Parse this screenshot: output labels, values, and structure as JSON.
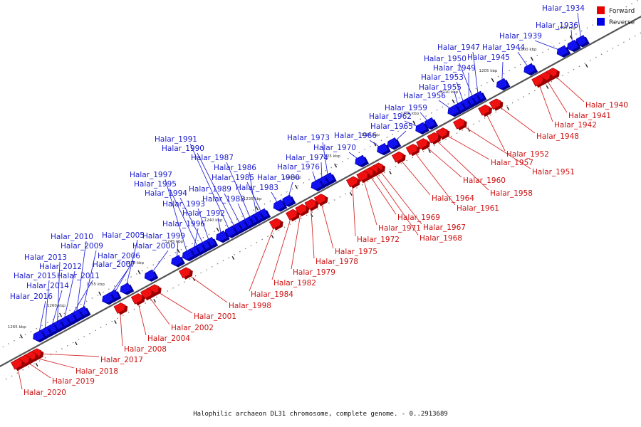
{
  "legend": {
    "forward": {
      "label": "Forward",
      "color": "#e80000"
    },
    "reverse": {
      "label": "Reverse",
      "color": "#0000e8"
    }
  },
  "caption": "Halophilic archaeon DL31 chromosome, complete genome. - 0..2913689",
  "axis": {
    "start_kbp": 1195,
    "end_kbp": 1265,
    "unit": "kbp"
  },
  "ticks": [
    1195,
    1200,
    1205,
    1210,
    1215,
    1220,
    1225,
    1230,
    1235,
    1240,
    1245,
    1250,
    1255,
    1260,
    1265
  ],
  "tick_labels": [
    "1195 kbp",
    "1200 kbp",
    "1205 kbp",
    "1210 kbp",
    "1215 kbp",
    "1220 kbp",
    "1225 kbp",
    "1230 kbp",
    "1235 kbp",
    "1240 kbp",
    "1245 kbp",
    "1250 kbp",
    "1255 kbp",
    "1260 kbp",
    "1265 kbp"
  ],
  "reverse_genes": [
    {
      "name": "Halar_1934",
      "kbp": 1194.2
    },
    {
      "name": "Halar_1936",
      "kbp": 1195.3
    },
    {
      "name": "Halar_1939",
      "kbp": 1196.6
    },
    {
      "name": "Halar_1944",
      "kbp": 1200.8
    },
    {
      "name": "Halar_1945",
      "kbp": 1204.3
    },
    {
      "name": "Halar_1947",
      "kbp": 1207.3
    },
    {
      "name": "Halar_1950",
      "kbp": 1207.9
    },
    {
      "name": "Halar_1949",
      "kbp": 1208.5
    },
    {
      "name": "Halar_1953",
      "kbp": 1209.1
    },
    {
      "name": "Halar_1955",
      "kbp": 1209.8
    },
    {
      "name": "Halar_1956",
      "kbp": 1210.5
    },
    {
      "name": "Halar_1959",
      "kbp": 1213.5
    },
    {
      "name": "Halar_1962",
      "kbp": 1214.6
    },
    {
      "name": "Halar_1965",
      "kbp": 1218.2
    },
    {
      "name": "Halar_1966",
      "kbp": 1219.5
    },
    {
      "name": "Halar_1970",
      "kbp": 1222.3
    },
    {
      "name": "Halar_1973",
      "kbp": 1226.4
    },
    {
      "name": "Halar_1974",
      "kbp": 1227.2
    },
    {
      "name": "Halar_1976",
      "kbp": 1227.9
    },
    {
      "name": "Halar_1980",
      "kbp": 1231.6
    },
    {
      "name": "Halar_1983",
      "kbp": 1232.7
    },
    {
      "name": "Halar_1985",
      "kbp": 1234.8
    },
    {
      "name": "Halar_1986",
      "kbp": 1235.5
    },
    {
      "name": "Halar_1987",
      "kbp": 1236.2
    },
    {
      "name": "Halar_1988",
      "kbp": 1236.8
    },
    {
      "name": "Halar_1989",
      "kbp": 1237.5
    },
    {
      "name": "Halar_1990",
      "kbp": 1238.2
    },
    {
      "name": "Halar_1991",
      "kbp": 1238.9
    },
    {
      "name": "Halar_1992",
      "kbp": 1240.0
    },
    {
      "name": "Halar_1993",
      "kbp": 1241.5
    },
    {
      "name": "Halar_1994",
      "kbp": 1242.2
    },
    {
      "name": "Halar_1995",
      "kbp": 1242.9
    },
    {
      "name": "Halar_1996",
      "kbp": 1243.6
    },
    {
      "name": "Halar_1997",
      "kbp": 1244.3
    },
    {
      "name": "Halar_1999",
      "kbp": 1245.7
    },
    {
      "name": "Halar_2000",
      "kbp": 1249.1
    },
    {
      "name": "Halar_2005",
      "kbp": 1252.2
    },
    {
      "name": "Halar_2006",
      "kbp": 1253.8
    },
    {
      "name": "Halar_2007",
      "kbp": 1254.5
    },
    {
      "name": "Halar_2009",
      "kbp": 1257.7
    },
    {
      "name": "Halar_2010",
      "kbp": 1258.5
    },
    {
      "name": "Halar_2011",
      "kbp": 1259.3
    },
    {
      "name": "Halar_2012",
      "kbp": 1260.1
    },
    {
      "name": "Halar_2013",
      "kbp": 1260.9
    },
    {
      "name": "Halar_2014",
      "kbp": 1261.7
    },
    {
      "name": "Halar_2015",
      "kbp": 1262.5
    },
    {
      "name": "Halar_2016",
      "kbp": 1263.3
    }
  ],
  "forward_genes": [
    {
      "name": "Halar_1940",
      "kbp": 1198.8
    },
    {
      "name": "Halar_1941",
      "kbp": 1199.7
    },
    {
      "name": "Halar_1942",
      "kbp": 1200.6
    },
    {
      "name": "Halar_1948",
      "kbp": 1206.0
    },
    {
      "name": "Halar_1951",
      "kbp": 1210.6
    },
    {
      "name": "Halar_1952",
      "kbp": 1207.4
    },
    {
      "name": "Halar_1957",
      "kbp": 1212.8
    },
    {
      "name": "Halar_1958",
      "kbp": 1213.9
    },
    {
      "name": "Halar_1960",
      "kbp": 1215.3
    },
    {
      "name": "Halar_1961",
      "kbp": 1216.6
    },
    {
      "name": "Halar_1964",
      "kbp": 1218.4
    },
    {
      "name": "Halar_1967",
      "kbp": 1221.0
    },
    {
      "name": "Halar_1968",
      "kbp": 1221.6
    },
    {
      "name": "Halar_1969",
      "kbp": 1222.2
    },
    {
      "name": "Halar_1971",
      "kbp": 1222.9
    },
    {
      "name": "Halar_1972",
      "kbp": 1224.2
    },
    {
      "name": "Halar_1975",
      "kbp": 1228.3
    },
    {
      "name": "Halar_1978",
      "kbp": 1229.5
    },
    {
      "name": "Halar_1979",
      "kbp": 1230.7
    },
    {
      "name": "Halar_1982",
      "kbp": 1231.9
    },
    {
      "name": "Halar_1984",
      "kbp": 1234.0
    },
    {
      "name": "Halar_1998",
      "kbp": 1245.5
    },
    {
      "name": "Halar_2001",
      "kbp": 1249.5
    },
    {
      "name": "Halar_2002",
      "kbp": 1250.4
    },
    {
      "name": "Halar_2004",
      "kbp": 1251.6
    },
    {
      "name": "Halar_2008",
      "kbp": 1253.8
    },
    {
      "name": "Halar_2017",
      "kbp": 1264.5
    },
    {
      "name": "Halar_2018",
      "kbp": 1265.2
    },
    {
      "name": "Halar_2019",
      "kbp": 1266.0
    },
    {
      "name": "Halar_2020",
      "kbp": 1266.9
    }
  ]
}
